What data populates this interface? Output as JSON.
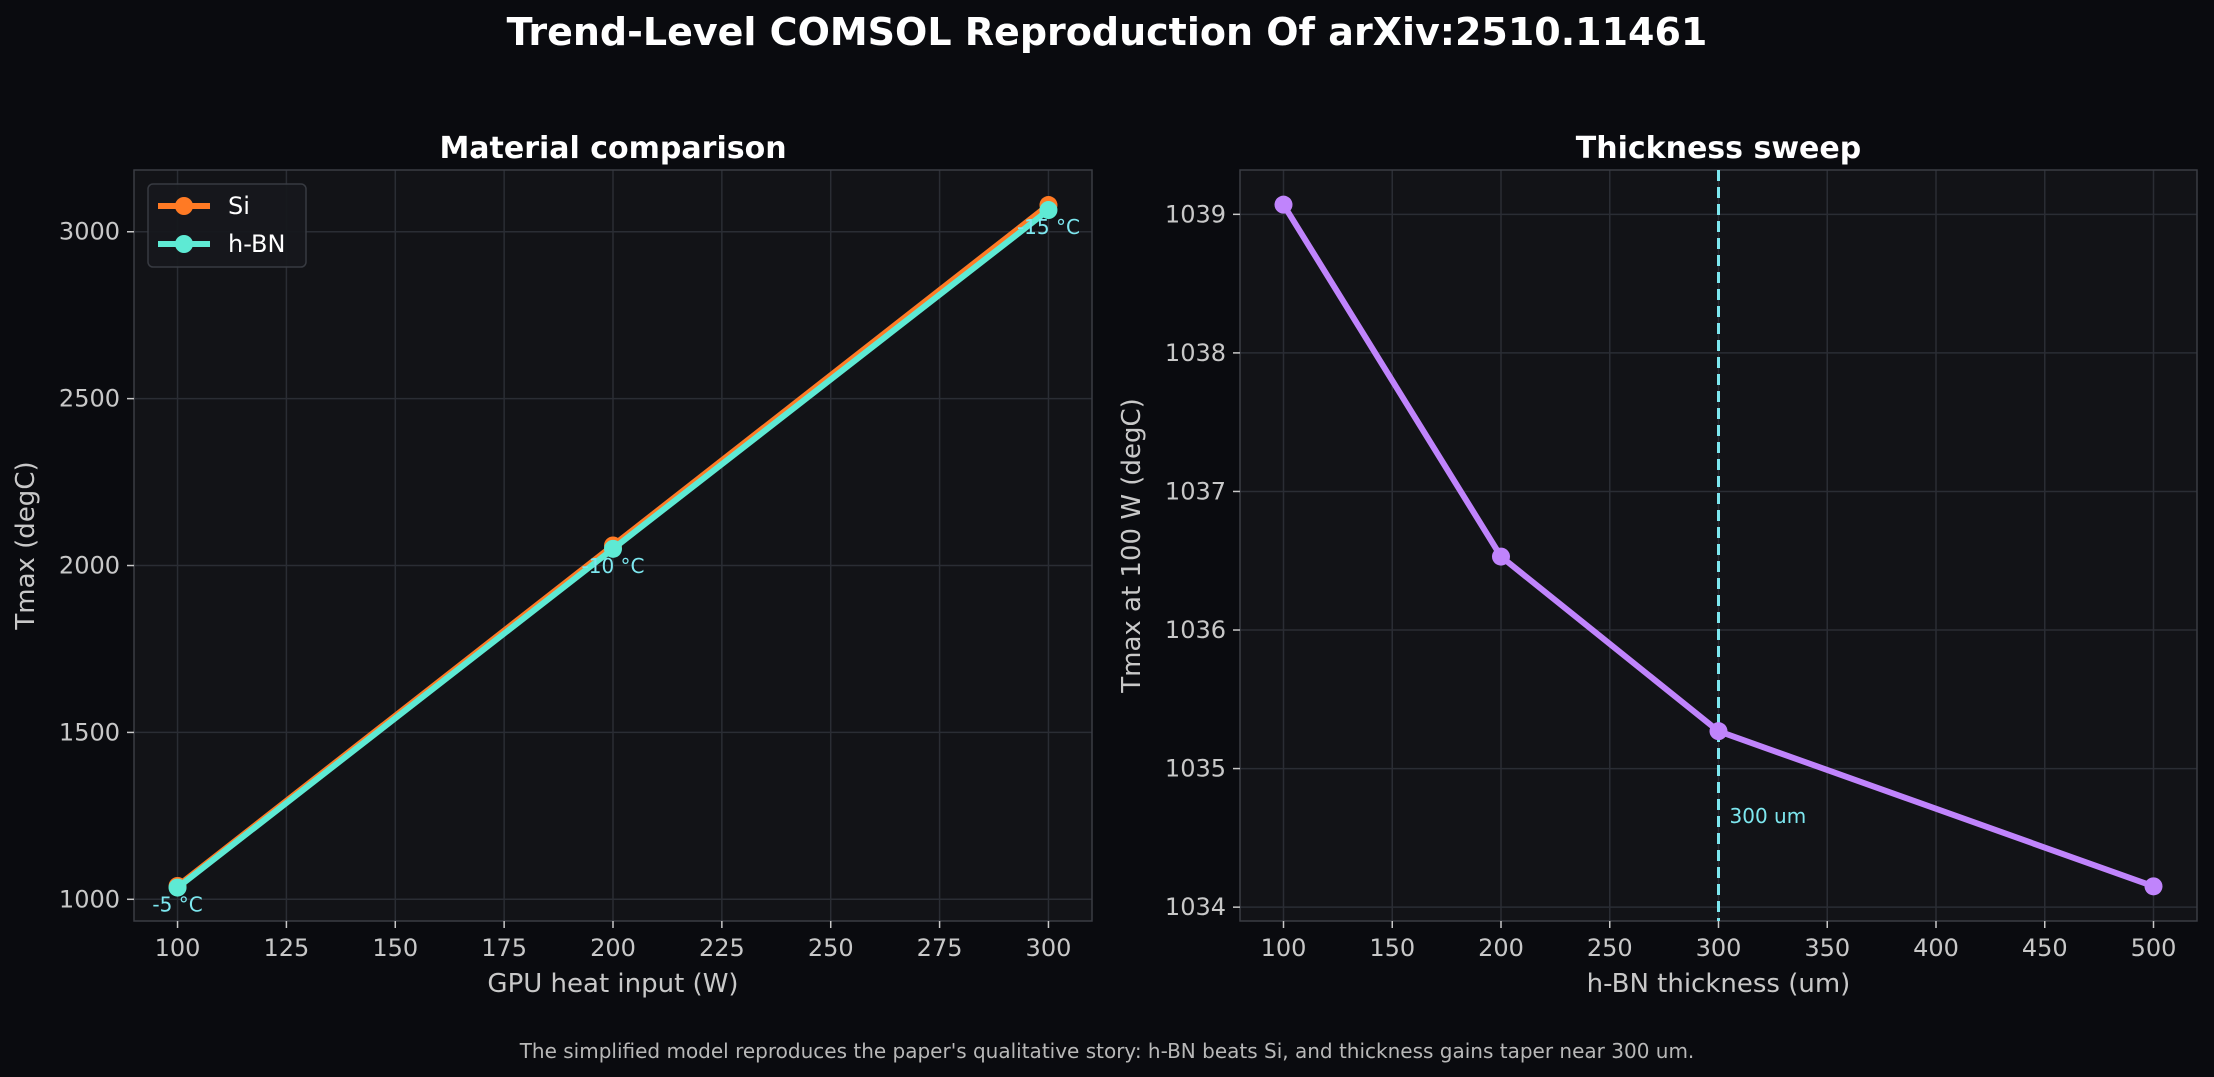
{
  "figure": {
    "title": "Trend-Level COMSOL Reproduction Of arXiv:2510.11461",
    "caption": "The simplified model reproduces the paper's qualitative story: h-BN beats Si, and thickness gains taper near 300 um."
  },
  "colors": {
    "figure_bg": "#0a0b0f",
    "axes_bg": "#121317",
    "grid": "#2a2d34",
    "spine": "#3a3d44",
    "text": "#ffffff",
    "tick_text": "#c8c8c8",
    "si": "#ff7a24",
    "hbn": "#5eead4",
    "sweep": "#c084fc",
    "annotation": "#7de7ef",
    "caption": "#b8b8b8"
  },
  "chart_data": [
    {
      "type": "line",
      "title": "Material comparison",
      "xlabel": "GPU heat input (W)",
      "ylabel": "Tmax (degC)",
      "xlim": [
        90,
        310
      ],
      "ylim": [
        935,
        3185
      ],
      "xticks": [
        100,
        125,
        150,
        175,
        200,
        225,
        250,
        275,
        300
      ],
      "yticks": [
        1000,
        1500,
        2000,
        2500,
        3000
      ],
      "grid": true,
      "legend_position": "top-left",
      "x": [
        100,
        200,
        300
      ],
      "series": [
        {
          "name": "Si",
          "values": [
            1040,
            2060,
            3080
          ],
          "color": "#ff7a24"
        },
        {
          "name": "h-BN",
          "values": [
            1035,
            2050,
            3065
          ],
          "color": "#5eead4"
        }
      ],
      "annotations": [
        {
          "text": "-5 °C",
          "x": 100,
          "y": 1035
        },
        {
          "text": "-10 °C",
          "x": 200,
          "y": 2050
        },
        {
          "text": "-15 °C",
          "x": 300,
          "y": 3065
        }
      ]
    },
    {
      "type": "line",
      "title": "Thickness sweep",
      "xlabel": "h-BN thickness (um)",
      "ylabel": "Tmax at 100 W (degC)",
      "xlim": [
        80,
        520
      ],
      "ylim": [
        1033.9,
        1039.32
      ],
      "xticks": [
        100,
        150,
        200,
        250,
        300,
        350,
        400,
        450,
        500
      ],
      "yticks": [
        1034,
        1035,
        1036,
        1037,
        1038,
        1039
      ],
      "grid": true,
      "x": [
        100,
        200,
        300,
        500
      ],
      "series": [
        {
          "values": [
            1039.07,
            1036.53,
            1035.27,
            1034.15
          ],
          "color": "#c084fc"
        }
      ],
      "vline": {
        "x": 300,
        "label": "300 um"
      }
    }
  ]
}
